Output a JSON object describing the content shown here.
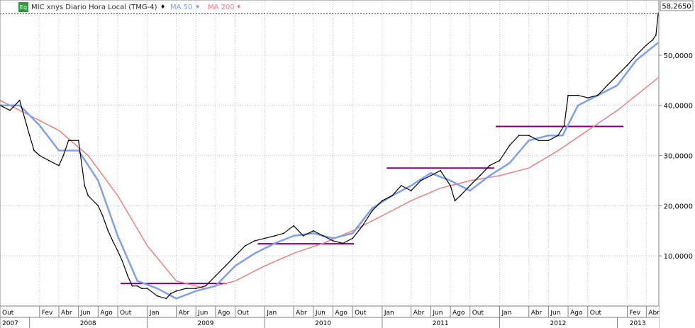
{
  "header": {
    "badge": "Eq",
    "title": "MIC xnys Diario Hora Local (TMG-4)",
    "ma50_label": "MA 50",
    "ma200_label": "MA 200"
  },
  "last_price_label": "58,2650",
  "colors": {
    "price": "#000000",
    "ma50": "#7f9ff0",
    "ma200": "#f07f7f",
    "support": "#800080",
    "last_price_line": "#cc0000",
    "grid": "#c8c8c8",
    "badge": "#2e9a3e"
  },
  "chart_data": {
    "type": "line",
    "title": "MIC xnys Diario Hora Local (TMG-4)",
    "x_range": [
      "2007-10-01",
      "2013-05-10"
    ],
    "y_range": [
      0,
      61
    ],
    "y_ticks": [
      {
        "value": 10,
        "label": "10,0000"
      },
      {
        "value": 20,
        "label": "20,0000"
      },
      {
        "value": 30,
        "label": "30,0000"
      },
      {
        "value": 40,
        "label": "40,0000"
      },
      {
        "value": 50,
        "label": "50,0000"
      }
    ],
    "x_month_ticks": [
      {
        "date": "2007-10-01",
        "label": "Out"
      },
      {
        "date": "2008-02-01",
        "label": "Fev"
      },
      {
        "date": "2008-04-01",
        "label": "Abr"
      },
      {
        "date": "2008-06-01",
        "label": "Jun"
      },
      {
        "date": "2008-08-01",
        "label": "Ago"
      },
      {
        "date": "2008-10-01",
        "label": "Out"
      },
      {
        "date": "2009-01-01",
        "label": "Jan"
      },
      {
        "date": "2009-04-01",
        "label": "Abr"
      },
      {
        "date": "2009-06-01",
        "label": "Jun"
      },
      {
        "date": "2009-08-01",
        "label": "Ago"
      },
      {
        "date": "2009-10-01",
        "label": "Out"
      },
      {
        "date": "2010-01-01",
        "label": "Jan"
      },
      {
        "date": "2010-04-01",
        "label": "Abr"
      },
      {
        "date": "2010-06-01",
        "label": "Jun"
      },
      {
        "date": "2010-08-01",
        "label": "Ago"
      },
      {
        "date": "2010-10-01",
        "label": "Out"
      },
      {
        "date": "2011-01-01",
        "label": "Jan"
      },
      {
        "date": "2011-04-01",
        "label": "Abr"
      },
      {
        "date": "2011-06-01",
        "label": "Jun"
      },
      {
        "date": "2011-08-01",
        "label": "Ago"
      },
      {
        "date": "2011-10-01",
        "label": "Out"
      },
      {
        "date": "2012-01-01",
        "label": "Jan"
      },
      {
        "date": "2012-04-01",
        "label": "Abr"
      },
      {
        "date": "2012-06-01",
        "label": "Jun"
      },
      {
        "date": "2012-08-01",
        "label": "Ago"
      },
      {
        "date": "2012-10-01",
        "label": "Out"
      },
      {
        "date": "2013-02-01",
        "label": "Fev"
      },
      {
        "date": "2013-04-01",
        "label": "Abr"
      }
    ],
    "x_year_ticks": [
      {
        "date": "2007-10-01",
        "label": "2007"
      },
      {
        "date": "2008-01-01",
        "label": "2008"
      },
      {
        "date": "2009-01-01",
        "label": "2009"
      },
      {
        "date": "2010-01-01",
        "label": "2010"
      },
      {
        "date": "2011-01-01",
        "label": "2011"
      },
      {
        "date": "2012-01-01",
        "label": "2012"
      },
      {
        "date": "2013-01-01",
        "label": "2013"
      }
    ],
    "series": [
      {
        "name": "MIC xnys Diario Hora Local (TMG-4)",
        "x": [
          "2007-10-01",
          "2007-11-01",
          "2007-12-01",
          "2008-01-01",
          "2008-01-15",
          "2008-02-01",
          "2008-03-01",
          "2008-04-01",
          "2008-04-15",
          "2008-05-01",
          "2008-06-01",
          "2008-06-20",
          "2008-07-01",
          "2008-08-01",
          "2008-08-15",
          "2008-09-01",
          "2008-09-15",
          "2008-10-01",
          "2008-10-15",
          "2008-11-01",
          "2008-11-15",
          "2008-12-01",
          "2008-12-15",
          "2009-01-01",
          "2009-02-01",
          "2009-03-01",
          "2009-03-15",
          "2009-04-01",
          "2009-05-01",
          "2009-06-01",
          "2009-07-01",
          "2009-08-01",
          "2009-09-01",
          "2009-10-01",
          "2009-11-01",
          "2009-12-01",
          "2010-01-01",
          "2010-02-01",
          "2010-03-01",
          "2010-04-01",
          "2010-05-01",
          "2010-06-01",
          "2010-07-01",
          "2010-08-01",
          "2010-09-01",
          "2010-10-01",
          "2010-11-01",
          "2010-12-01",
          "2011-01-01",
          "2011-02-01",
          "2011-03-01",
          "2011-04-01",
          "2011-05-01",
          "2011-06-01",
          "2011-07-01",
          "2011-08-01",
          "2011-08-15",
          "2011-09-01",
          "2011-10-01",
          "2011-11-01",
          "2011-12-01",
          "2012-01-01",
          "2012-02-01",
          "2012-03-01",
          "2012-04-01",
          "2012-05-01",
          "2012-06-01",
          "2012-07-01",
          "2012-07-20",
          "2012-08-01",
          "2012-09-01",
          "2012-10-01",
          "2012-11-01",
          "2012-12-01",
          "2013-01-01",
          "2013-02-01",
          "2013-03-01",
          "2013-04-01",
          "2013-04-20",
          "2013-05-01",
          "2013-05-08"
        ],
        "values": [
          40,
          39,
          41,
          34,
          31,
          30,
          29,
          28,
          30,
          33,
          33,
          24,
          22,
          20,
          18,
          15,
          13,
          11,
          9,
          6,
          4,
          4,
          3.5,
          3.5,
          2,
          1.5,
          2.5,
          3,
          3.5,
          3.5,
          4,
          6,
          8,
          10,
          12,
          13,
          13.5,
          14,
          14.5,
          16,
          14,
          15,
          14,
          13,
          12.5,
          13.5,
          16,
          19,
          21,
          22,
          24,
          23,
          25,
          26,
          27,
          24,
          21,
          22,
          24,
          26,
          28,
          29,
          32,
          34,
          34,
          33,
          33,
          34,
          36,
          42,
          42,
          41.5,
          42,
          44,
          46,
          48,
          50,
          52,
          53,
          54,
          58.3
        ]
      },
      {
        "name": "MA 50",
        "x": [
          "2007-10-01",
          "2007-12-01",
          "2008-02-01",
          "2008-04-01",
          "2008-06-01",
          "2008-08-01",
          "2008-10-01",
          "2008-12-01",
          "2009-02-01",
          "2009-04-01",
          "2009-06-01",
          "2009-08-01",
          "2009-10-01",
          "2009-12-01",
          "2010-02-01",
          "2010-04-01",
          "2010-06-01",
          "2010-08-01",
          "2010-10-01",
          "2010-12-01",
          "2011-02-01",
          "2011-04-01",
          "2011-06-01",
          "2011-08-01",
          "2011-10-01",
          "2011-12-01",
          "2012-02-01",
          "2012-04-01",
          "2012-06-01",
          "2012-07-15",
          "2012-09-01",
          "2012-11-01",
          "2013-01-01",
          "2013-03-01",
          "2013-05-08"
        ],
        "values": [
          40,
          40,
          36,
          31,
          31,
          25,
          14,
          5,
          3.5,
          1.5,
          3,
          4,
          8,
          10.5,
          12.5,
          14,
          14.5,
          13.5,
          14.5,
          19.5,
          22,
          24,
          26.5,
          25,
          23,
          26,
          28.5,
          33,
          34,
          34,
          40,
          42,
          44,
          49,
          52.5
        ]
      },
      {
        "name": "MA 200",
        "x": [
          "2007-10-01",
          "2008-01-01",
          "2008-04-01",
          "2008-07-01",
          "2008-10-01",
          "2009-01-01",
          "2009-04-01",
          "2009-07-01",
          "2009-10-01",
          "2010-01-01",
          "2010-04-01",
          "2010-07-01",
          "2010-10-01",
          "2011-01-01",
          "2011-04-01",
          "2011-07-01",
          "2011-10-01",
          "2012-01-01",
          "2012-04-01",
          "2012-07-01",
          "2012-10-01",
          "2013-01-01",
          "2013-05-08"
        ],
        "values": [
          41,
          38,
          35,
          30,
          22,
          12,
          5,
          3.5,
          5,
          8,
          10.5,
          12.5,
          15,
          18,
          21,
          23.5,
          25,
          26,
          27.5,
          31,
          35,
          39,
          45.5
        ]
      }
    ],
    "support_lines": [
      {
        "x_start": "2008-10-10",
        "x_end": "2009-09-05",
        "y": 4.5
      },
      {
        "x_start": "2009-12-10",
        "x_end": "2010-10-05",
        "y": 12.4
      },
      {
        "x_start": "2011-01-15",
        "x_end": "2011-12-15",
        "y": 27.5
      },
      {
        "x_start": "2011-12-20",
        "x_end": "2013-01-20",
        "y": 35.8
      }
    ],
    "last_value": 58.265,
    "grid": true
  }
}
